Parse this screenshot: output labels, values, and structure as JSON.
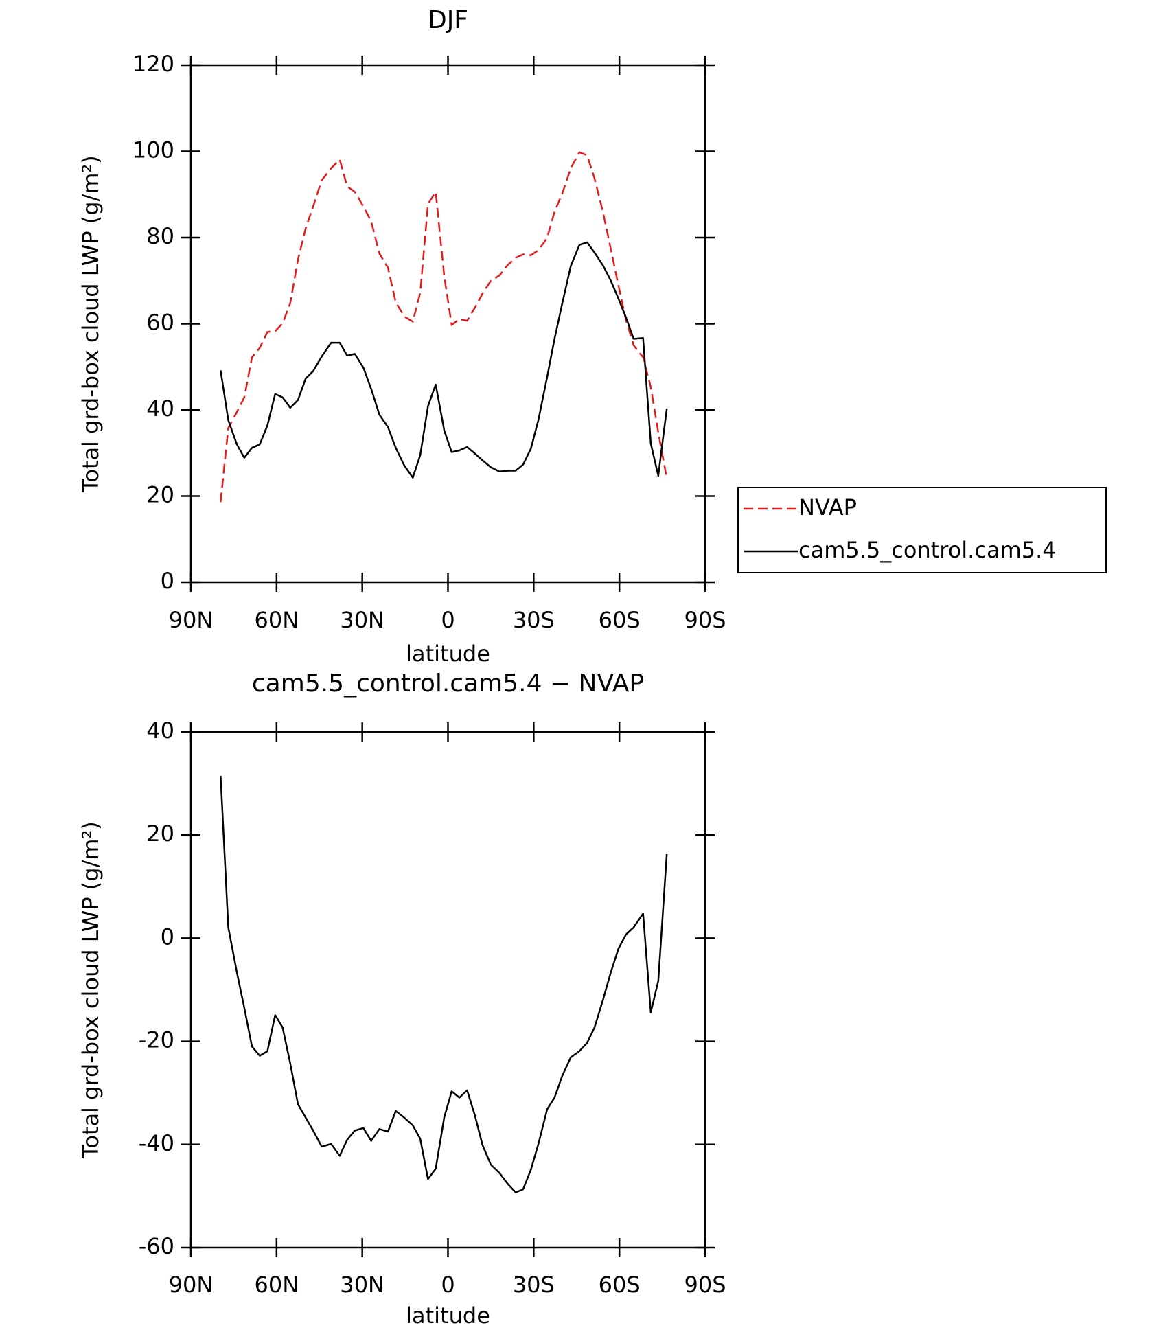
{
  "chart_data": [
    {
      "type": "line",
      "title": "DJF",
      "xlabel": "latitude",
      "ylabel": "Total grd-box cloud LWP (g/m²)",
      "x": [
        79.6,
        76.9,
        73.9,
        71.3,
        68.6,
        65.9,
        63.2,
        60.5,
        57.9,
        55.2,
        52.5,
        49.8,
        47.2,
        44.2,
        40.9,
        37.9,
        35.3,
        32.6,
        29.6,
        26.9,
        24.0,
        21.0,
        18.3,
        15.3,
        12.3,
        9.7,
        7.0,
        4.3,
        1.3,
        -1.3,
        -4.0,
        -6.7,
        -9.4,
        -12.1,
        -15.0,
        -18.0,
        -21.0,
        -23.7,
        -26.3,
        -29.0,
        -31.7,
        -34.7,
        -37.3,
        -40.0,
        -43.0,
        -46.0,
        -48.7,
        -51.3,
        -54.3,
        -57.0,
        -59.7,
        -62.3,
        -65.0,
        -68.3,
        -71.0,
        -73.6,
        -76.6
      ],
      "xlim": [
        90,
        -90
      ],
      "xticks": [
        {
          "value": 90,
          "label": "90N"
        },
        {
          "value": 60,
          "label": "60N"
        },
        {
          "value": 30,
          "label": "30N"
        },
        0,
        {
          "value": -30,
          "label": "30S"
        },
        {
          "value": -60,
          "label": "60S"
        },
        {
          "value": -90,
          "label": "90S"
        }
      ],
      "ylim": [
        0,
        120
      ],
      "yticks": [
        0,
        20,
        40,
        60,
        80,
        100,
        120
      ],
      "legend": "right",
      "series": [
        {
          "name": "NVAP",
          "color": "#e41a1c",
          "dash": true,
          "values": [
            18.6,
            35.8,
            39.5,
            42.9,
            52.2,
            54.4,
            58.1,
            58.3,
            60.1,
            64.8,
            74.9,
            82.2,
            87.2,
            93.3,
            96.1,
            98.1,
            91.9,
            90.6,
            87.2,
            83.8,
            76.3,
            73.0,
            65.0,
            61.7,
            60.5,
            67.2,
            87.8,
            90.6,
            71.0,
            59.7,
            61.1,
            60.7,
            63.7,
            67.0,
            70.0,
            71.2,
            73.7,
            75.3,
            76.1,
            75.9,
            77.1,
            79.9,
            86.0,
            90.2,
            96.1,
            99.8,
            99.1,
            93.7,
            85.8,
            77.3,
            68.8,
            60.9,
            55.0,
            52.2,
            45.3,
            34.8,
            24.1
          ]
        },
        {
          "name": "cam5.5_control.cam5.4",
          "color": "#000000",
          "dash": false,
          "values": [
            49.2,
            37.6,
            32.0,
            28.9,
            31.2,
            32.0,
            36.4,
            43.7,
            42.9,
            40.5,
            42.3,
            47.3,
            49.0,
            52.4,
            55.6,
            55.6,
            52.6,
            53.0,
            49.8,
            44.9,
            38.9,
            36.0,
            31.2,
            27.1,
            24.3,
            29.5,
            40.9,
            45.9,
            35.2,
            30.2,
            30.6,
            31.4,
            29.9,
            28.3,
            26.7,
            25.7,
            25.9,
            25.9,
            27.3,
            31.0,
            37.8,
            47.6,
            56.5,
            64.7,
            73.4,
            78.3,
            78.9,
            76.5,
            73.5,
            70.0,
            65.8,
            61.5,
            56.5,
            56.7,
            32.2,
            24.7,
            40.3
          ]
        }
      ]
    },
    {
      "type": "line",
      "title": "cam5.5_control.cam5.4 − NVAP",
      "xlabel": "latitude",
      "ylabel": "Total grd-box cloud LWP (g/m²)",
      "x": [
        79.6,
        76.9,
        73.9,
        71.3,
        68.6,
        65.9,
        63.2,
        60.5,
        57.9,
        55.2,
        52.5,
        49.8,
        47.2,
        44.2,
        40.9,
        37.9,
        35.3,
        32.6,
        29.6,
        26.9,
        24.0,
        21.0,
        18.3,
        15.3,
        12.3,
        9.7,
        7.0,
        4.3,
        1.3,
        -1.3,
        -4.0,
        -6.7,
        -9.4,
        -12.1,
        -15.0,
        -18.0,
        -21.0,
        -23.7,
        -26.3,
        -29.0,
        -31.7,
        -34.7,
        -37.3,
        -40.0,
        -43.0,
        -46.0,
        -48.7,
        -51.3,
        -54.3,
        -57.0,
        -59.7,
        -62.3,
        -65.0,
        -68.3,
        -71.0,
        -73.6,
        -76.6
      ],
      "xlim": [
        90,
        -90
      ],
      "xticks": [
        {
          "value": 90,
          "label": "90N"
        },
        {
          "value": 60,
          "label": "60N"
        },
        {
          "value": 30,
          "label": "30N"
        },
        0,
        {
          "value": -30,
          "label": "30S"
        },
        {
          "value": -60,
          "label": "60S"
        },
        {
          "value": -90,
          "label": "90S"
        }
      ],
      "ylim": [
        -60,
        40
      ],
      "yticks": [
        -60,
        -40,
        -20,
        0,
        20,
        40
      ],
      "color": "#000000",
      "values": [
        31.5,
        2.1,
        -6.6,
        -13.5,
        -21.0,
        -22.8,
        -21.9,
        -14.9,
        -17.3,
        -24.3,
        -32.2,
        -34.8,
        -37.3,
        -40.4,
        -39.9,
        -42.2,
        -39.1,
        -37.3,
        -36.8,
        -39.3,
        -37.0,
        -37.5,
        -33.5,
        -34.8,
        -36.3,
        -38.9,
        -46.7,
        -44.7,
        -34.7,
        -29.7,
        -30.9,
        -29.5,
        -34.3,
        -40.1,
        -43.9,
        -45.5,
        -47.7,
        -49.3,
        -48.7,
        -44.9,
        -39.8,
        -33.2,
        -30.9,
        -26.7,
        -23.1,
        -21.9,
        -20.3,
        -17.3,
        -11.9,
        -6.6,
        -2.0,
        0.7,
        2.1,
        4.8,
        -14.4,
        -8.3,
        16.3
      ]
    }
  ]
}
